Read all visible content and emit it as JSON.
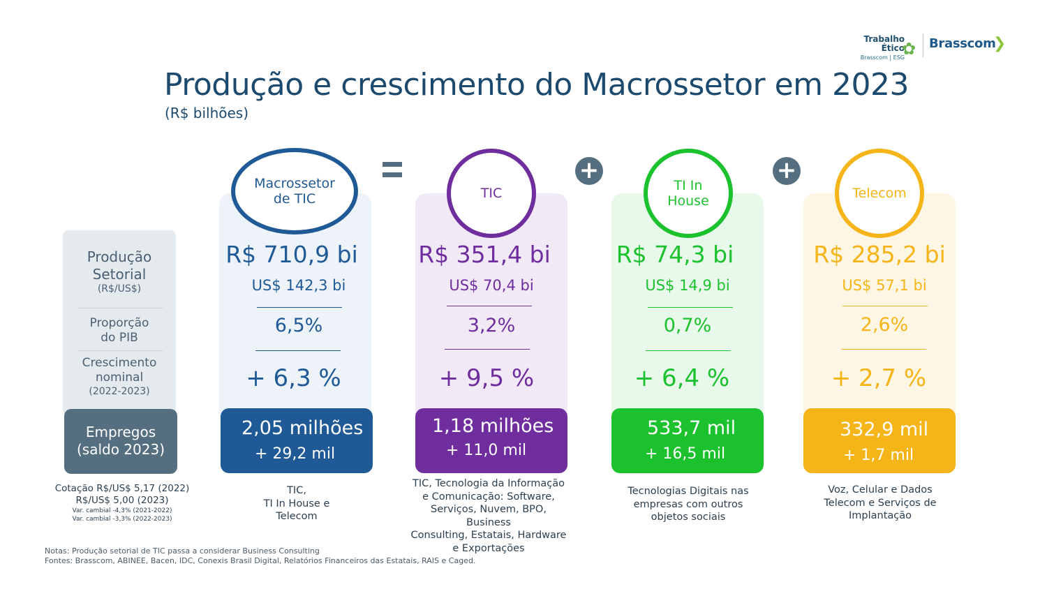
{
  "header": {
    "title": "Produção e crescimento do Macrossetor em 2023",
    "subtitle": "(R$ bilhões)"
  },
  "logo": {
    "te_line1": "Trabalho",
    "te_line2": "Ético",
    "te_line3": "Brasscom | ESG",
    "brand": "Brasscom"
  },
  "row_labels": {
    "producao_1": "Produção",
    "producao_2": "Setorial",
    "producao_3": "(R$/US$)",
    "proporcao_1": "Proporção",
    "proporcao_2": "do PIB",
    "crescimento_1": "Crescimento",
    "crescimento_2": "nominal",
    "crescimento_3": "(2022-2023)",
    "empregos_1": "Empregos",
    "empregos_2": "(saldo 2023)"
  },
  "cotacao": {
    "line1": "Cotação R$/US$ 5,17 (2022)",
    "line2": "R$/US$ 5,00 (2023)",
    "line3": "Var. cambial -4,3% (2021-2022)",
    "line4": "Var. cambial -3,3% (2022-2023)"
  },
  "operators": {
    "plus1": "+",
    "plus2": "+"
  },
  "columns": [
    {
      "name_1": "Macrossetor",
      "name_2": "de TIC",
      "brl": "R$ 710,9 bi",
      "usd": "US$ 142,3 bi",
      "pib": "6,5%",
      "growth": "+ 6,3 %",
      "emp_main": "2,05 milhões",
      "emp_sub": "+ 29,2 mil",
      "desc_1": "TIC,",
      "desc_2": "TI In House e",
      "desc_3": "Telecom",
      "color": "#1f5a96",
      "bg": "#eef3f9"
    },
    {
      "name_1": "TIC",
      "brl": "R$ 351,4 bi",
      "usd": "US$ 70,4 bi",
      "pib": "3,2%",
      "growth": "+ 9,5 %",
      "emp_main": "1,18 milhões",
      "emp_sub": "+ 11,0 mil",
      "desc_1": "TIC, Tecnologia da Informação",
      "desc_2": "e Comunicação: Software,",
      "desc_3": "Serviços, Nuvem, BPO, Business",
      "desc_4": "Consulting, Estatais, Hardware",
      "desc_5": "e Exportações",
      "color": "#6f2d9e",
      "bg": "#f1e9f6"
    },
    {
      "name_1": "TI In",
      "name_2": "House",
      "brl": "R$ 74,3 bi",
      "usd": "US$ 14,9 bi",
      "pib": "0,7%",
      "growth": "+ 6,4 %",
      "emp_main": "533,7 mil",
      "emp_sub": "+ 16,5 mil",
      "desc_1": "Tecnologias Digitais nas",
      "desc_2": "empresas com outros",
      "desc_3": "objetos sociais",
      "color": "#1cc12e",
      "bg": "#e8f8ea"
    },
    {
      "name_1": "Telecom",
      "brl": "R$ 285,2 bi",
      "usd": "US$ 57,1 bi",
      "pib": "2,6%",
      "growth": "+ 2,7 %",
      "emp_main": "332,9 mil",
      "emp_sub": "+ 1,7 mil",
      "desc_1": "Voz, Celular e Dados",
      "desc_2": "Telecom e Serviços de",
      "desc_3": "Implantação",
      "color": "#f5b417",
      "bg": "#fdf6e4"
    }
  ],
  "notes": {
    "line1": "Notas: Produção setorial de TIC passa a considerar Business Consulting",
    "line2": "Fontes: Brasscom, ABINEE, Bacen, IDC, Conexis Brasil Digital, Relatórios Financeiros das Estatais, RAIS e Caged."
  }
}
